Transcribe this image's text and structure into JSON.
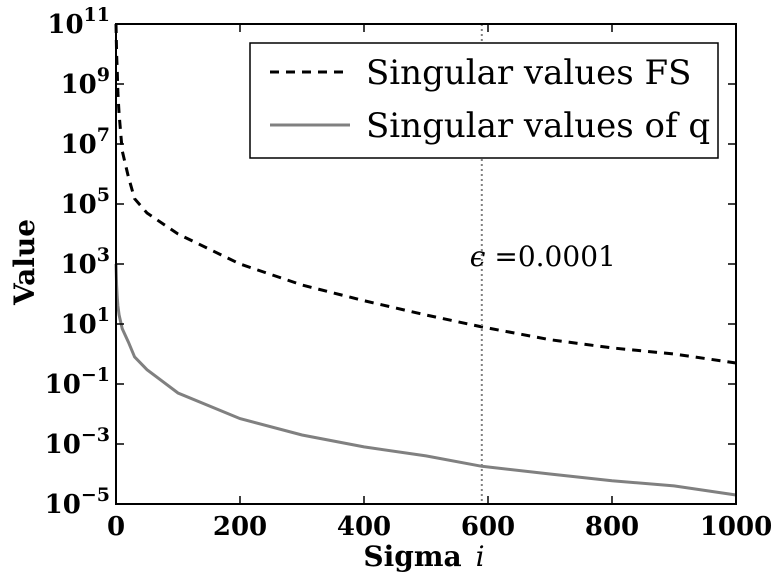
{
  "chart_data": {
    "type": "line",
    "xlabel": "Sigma",
    "xlabel_symbol": "i",
    "ylabel": "Value",
    "xlim": [
      0,
      1000
    ],
    "ylim_log10": [
      -5,
      11
    ],
    "yscale": "log",
    "grid": false,
    "legend_placement": "top-right",
    "x_ticks": [
      "0",
      "200",
      "400",
      "600",
      "800",
      "1000"
    ],
    "y_ticks": [
      {
        "base": "10",
        "exp": "11"
      },
      {
        "base": "10",
        "exp": "9"
      },
      {
        "base": "10",
        "exp": "7"
      },
      {
        "base": "10",
        "exp": "5"
      },
      {
        "base": "10",
        "exp": "3"
      },
      {
        "base": "10",
        "exp": "1"
      },
      {
        "base": "10",
        "exp": "−1"
      },
      {
        "base": "10",
        "exp": "−3"
      },
      {
        "base": "10",
        "exp": "−5"
      }
    ],
    "series": [
      {
        "name": "Singular values FS",
        "style": "dashed",
        "color": "#000000",
        "x": [
          0,
          1,
          2,
          3,
          5,
          10,
          20,
          30,
          50,
          100,
          200,
          300,
          400,
          500,
          590,
          700,
          800,
          900,
          1000
        ],
        "y": [
          100000000000.0,
          10000000000.0,
          3000000000.0,
          500000000.0,
          100000000.0,
          6000000.0,
          800000.0,
          150000.0,
          50000.0,
          10000.0,
          1000.0,
          200.0,
          60,
          20,
          8,
          3,
          1.6,
          1,
          0.5
        ]
      },
      {
        "name": "Singular values of q",
        "style": "solid",
        "color": "#808080",
        "x": [
          0,
          1,
          2,
          3,
          5,
          10,
          20,
          30,
          50,
          100,
          200,
          300,
          400,
          500,
          590,
          700,
          800,
          900,
          1000
        ],
        "y": [
          1000,
          200,
          80,
          40,
          20,
          7,
          2.5,
          0.8,
          0.3,
          0.05,
          0.007,
          0.002,
          0.0008,
          0.0004,
          0.00018,
          0.0001,
          6e-05,
          4e-05,
          2e-05
        ]
      }
    ],
    "vline": {
      "x": 590,
      "color": "#808080",
      "style": "dotted"
    },
    "annotation": {
      "symbol": "ϵ",
      "text": " =0.0001",
      "x": 590,
      "y": 1000
    }
  }
}
